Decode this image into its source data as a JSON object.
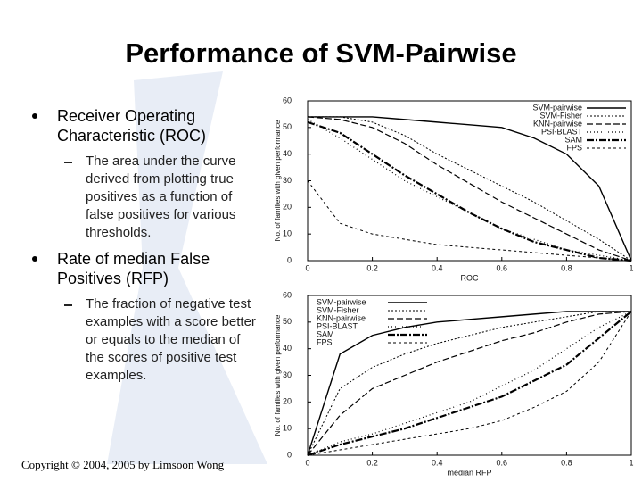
{
  "slide": {
    "title": "Performance of SVM-Pairwise",
    "bullets": [
      {
        "text": "Receiver Operating Characteristic (ROC)",
        "sub": "The area under the curve derived from plotting true positives as a function of false positives for various thresholds."
      },
      {
        "text": "Rate of median False Positives (RFP)",
        "sub": "The fraction of negative test examples with a score better or equals to the median of the scores of positive test examples."
      }
    ],
    "footer": "Copyright © 2004, 2005 by Limsoon Wong"
  },
  "chart_data": [
    {
      "type": "line",
      "xlabel": "ROC",
      "ylabel": "No. of families with given performance",
      "x": [
        0,
        0.1,
        0.2,
        0.3,
        0.4,
        0.5,
        0.6,
        0.7,
        0.8,
        0.9,
        1
      ],
      "xlim": [
        0,
        1
      ],
      "xticks": [
        0,
        0.2,
        0.4,
        0.6,
        0.8,
        1
      ],
      "ylim": [
        0,
        60
      ],
      "yticks": [
        0,
        10,
        20,
        30,
        40,
        50,
        60
      ],
      "legend": "upper right",
      "series": [
        {
          "name": "SVM-pairwise",
          "color": "#000000",
          "values": [
            54,
            54,
            54,
            53,
            52,
            51,
            50,
            46,
            40,
            28,
            0
          ]
        },
        {
          "name": "SVM-Fisher",
          "color": "#000000",
          "values": [
            54,
            54,
            52,
            47,
            40,
            34,
            28,
            22,
            15,
            8,
            0
          ]
        },
        {
          "name": "KNN-pairwise",
          "color": "#000000",
          "values": [
            54,
            53,
            50,
            44,
            36,
            29,
            22,
            16,
            10,
            4,
            0
          ]
        },
        {
          "name": "PSI-BLAST",
          "color": "#000000",
          "values": [
            53,
            46,
            38,
            30,
            24,
            18,
            12,
            8,
            4,
            2,
            0
          ]
        },
        {
          "name": "SAM",
          "color": "#000000",
          "values": [
            52,
            48,
            40,
            32,
            25,
            18,
            12,
            7,
            4,
            1,
            0
          ]
        },
        {
          "name": "FPS",
          "color": "#000000",
          "values": [
            30,
            14,
            10,
            8,
            6,
            5,
            4,
            3,
            2,
            1,
            0
          ]
        }
      ]
    },
    {
      "type": "line",
      "xlabel": "median RFP",
      "ylabel": "No. of families with given performance",
      "x": [
        0,
        0.1,
        0.2,
        0.3,
        0.4,
        0.5,
        0.6,
        0.7,
        0.8,
        0.9,
        1
      ],
      "xlim": [
        0,
        1
      ],
      "xticks": [
        0,
        0.2,
        0.4,
        0.6,
        0.8,
        1
      ],
      "ylim": [
        0,
        60
      ],
      "yticks": [
        0,
        10,
        20,
        30,
        40,
        50,
        60
      ],
      "legend": "upper left",
      "series": [
        {
          "name": "SVM-pairwise",
          "color": "#000000",
          "values": [
            0,
            38,
            45,
            48,
            50,
            51,
            52,
            53,
            54,
            54,
            54
          ]
        },
        {
          "name": "SVM-Fisher",
          "color": "#000000",
          "values": [
            0,
            25,
            33,
            38,
            42,
            45,
            48,
            50,
            52,
            54,
            54
          ]
        },
        {
          "name": "KNN-pairwise",
          "color": "#000000",
          "values": [
            0,
            15,
            25,
            30,
            35,
            39,
            43,
            46,
            50,
            53,
            54
          ]
        },
        {
          "name": "PSI-BLAST",
          "color": "#000000",
          "values": [
            0,
            5,
            8,
            12,
            16,
            20,
            26,
            32,
            40,
            48,
            54
          ]
        },
        {
          "name": "SAM",
          "color": "#000000",
          "values": [
            0,
            4,
            7,
            10,
            14,
            18,
            22,
            28,
            34,
            44,
            54
          ]
        },
        {
          "name": "FPS",
          "color": "#000000",
          "values": [
            0,
            2,
            4,
            6,
            8,
            10,
            13,
            18,
            24,
            35,
            54
          ]
        }
      ]
    }
  ]
}
